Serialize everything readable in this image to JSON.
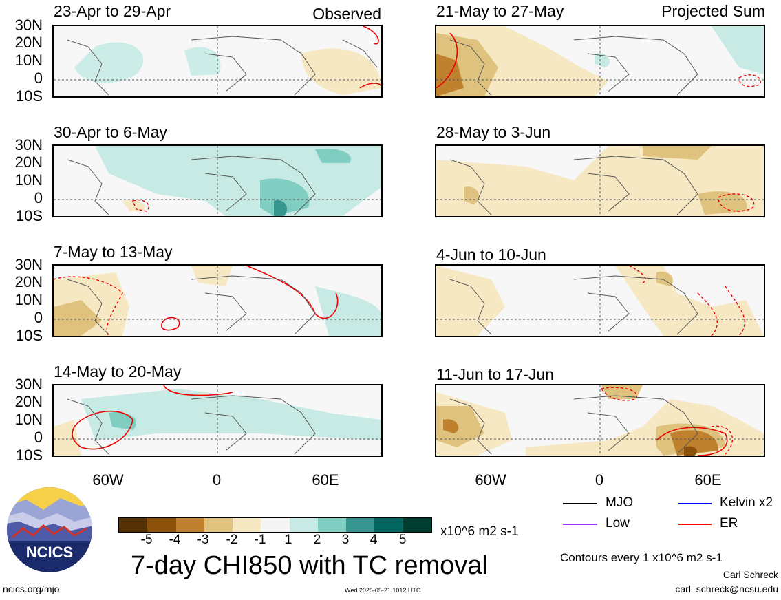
{
  "columns": [
    {
      "label": "Observed",
      "panels": [
        {
          "title": "23-Apr to 29-Apr"
        },
        {
          "title": "30-Apr to 6-May"
        },
        {
          "title": "7-May to 13-May"
        },
        {
          "title": "14-May to 20-May"
        }
      ]
    },
    {
      "label": "Projected Sum",
      "panels": [
        {
          "title": "21-May to 27-May"
        },
        {
          "title": "28-May to 3-Jun"
        },
        {
          "title": "4-Jun to 10-Jun"
        },
        {
          "title": "11-Jun to 17-Jun"
        }
      ]
    }
  ],
  "lat_labels": [
    "30N",
    "20N",
    "10N",
    "0",
    "10S"
  ],
  "lon_labels": [
    "60W",
    "0",
    "60E"
  ],
  "colorbar": {
    "ticks": [
      "-5",
      "-4",
      "-3",
      "-2",
      "-1",
      "1",
      "2",
      "3",
      "4",
      "5"
    ],
    "colors": [
      "#543005",
      "#8c510a",
      "#bf812d",
      "#dfc27d",
      "#f6e8c3",
      "#f5f5f5",
      "#c7eae5",
      "#80cdc1",
      "#35978f",
      "#01665e",
      "#003c30"
    ],
    "units": "x10^6 m2 s-1"
  },
  "main_title": "7-day CHI850 with TC removal",
  "legend": [
    {
      "label": "MJO",
      "color": "#000000"
    },
    {
      "label": "Kelvin x2",
      "color": "#0000ff"
    },
    {
      "label": "Low",
      "color": "#9933ff"
    },
    {
      "label": "ER",
      "color": "#ff0000"
    }
  ],
  "contour_note": "Contours every 1 x10^6 m2 s-1",
  "author": "Carl Schreck",
  "email": "carl_schreck@ncsu.edu",
  "site": "ncics.org/mjo",
  "timestamp": "Wed 2025-05-21 1012 UTC",
  "logo_text": "NCICS"
}
